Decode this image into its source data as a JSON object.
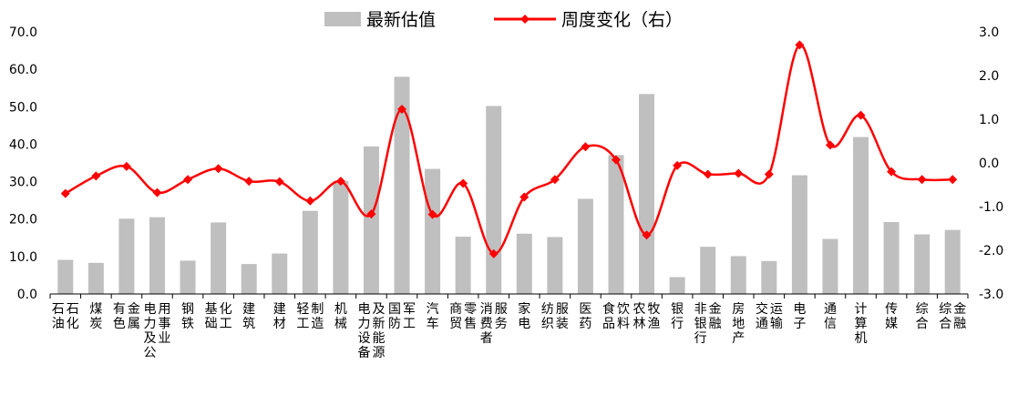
{
  "chart_data": {
    "type": "bar",
    "categories": [
      "石油石化",
      "煤炭",
      "有色金属",
      "电力及公用事业",
      "钢铁",
      "基础化工",
      "建筑",
      "建材",
      "轻工制造",
      "机械",
      "电力设备及新能源",
      "国防军工",
      "汽车",
      "商贸零售",
      "消费者服务",
      "家电",
      "纺织服装",
      "医药",
      "食品饮料",
      "农林牧渔",
      "银行",
      "非银行金融",
      "房地产",
      "交通运输",
      "电子",
      "通信",
      "计算机",
      "传媒",
      "综合",
      "综合金融"
    ],
    "series": [
      {
        "name": "最新估值",
        "kind": "bar",
        "axis": "left",
        "color": "#bfbfbf",
        "values": [
          9.1,
          8.3,
          20.1,
          20.5,
          8.9,
          19.1,
          8.0,
          10.8,
          22.2,
          30.2,
          39.4,
          58.0,
          33.4,
          15.3,
          50.2,
          16.1,
          15.2,
          25.4,
          37.1,
          53.4,
          4.5,
          12.6,
          10.1,
          8.8,
          31.7,
          14.7,
          41.9,
          19.2,
          15.9,
          17.1
        ]
      },
      {
        "name": "周度变化（右）",
        "kind": "line",
        "axis": "right",
        "color": "#ff0000",
        "values": [
          -0.7,
          -0.3,
          -0.08,
          -0.68,
          -0.38,
          -0.13,
          -0.42,
          -0.43,
          -0.87,
          -0.42,
          -1.17,
          1.23,
          -1.18,
          -0.47,
          -2.08,
          -0.78,
          -0.38,
          0.37,
          0.07,
          -1.65,
          -0.06,
          -0.26,
          -0.24,
          -0.26,
          2.7,
          0.41,
          1.09,
          -0.2,
          -0.38,
          -0.38
        ]
      }
    ],
    "ylim_left": [
      0,
      70
    ],
    "yticks_left": [
      "0.0",
      "10.0",
      "20.0",
      "30.0",
      "40.0",
      "50.0",
      "60.0",
      "70.0"
    ],
    "ylim_right": [
      -3,
      3
    ],
    "yticks_right": [
      "-3.0",
      "-2.0",
      "-1.0",
      "0.0",
      "1.0",
      "2.0",
      "3.0"
    ],
    "legend_position": "top-center",
    "grid": false
  }
}
